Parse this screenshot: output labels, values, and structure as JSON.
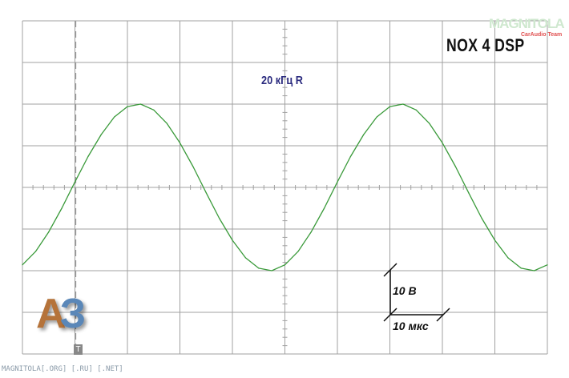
{
  "chart_data": {
    "type": "line",
    "title": "NOX 4 DSP",
    "annotation": "20 кГц R",
    "xlabel": "",
    "ylabel": "",
    "x_unit_per_div": "10 мкс",
    "y_unit_per_div": "10 В",
    "xlim": [
      0,
      100
    ],
    "ylim": [
      -40,
      40
    ],
    "grid": true,
    "trigger_label": "T",
    "trace_color": "#3a9a3a",
    "x": [
      0,
      2.5,
      5,
      7.5,
      10,
      12.5,
      15,
      17.5,
      20,
      22.5,
      25,
      27.5,
      30,
      32.5,
      35,
      37.5,
      40,
      42.5,
      45,
      47.5,
      50,
      52.5,
      55,
      57.5,
      60,
      62.5,
      65,
      67.5,
      70,
      72.5,
      75,
      77.5,
      80,
      82.5,
      85,
      87.5,
      90,
      92.5,
      95,
      97.5,
      100
    ],
    "series": [
      {
        "values": [
          -18.6,
          -15.4,
          -10.7,
          -5.0,
          1.3,
          7.4,
          12.7,
          16.9,
          19.4,
          20.0,
          18.6,
          15.4,
          10.7,
          5.0,
          -1.3,
          -7.4,
          -12.7,
          -16.9,
          -19.4,
          -20.0,
          -18.6,
          -15.4,
          -10.7,
          -5.0,
          1.3,
          7.4,
          12.7,
          16.9,
          19.4,
          20.0,
          18.6,
          15.4,
          10.7,
          5.0,
          -1.3,
          -7.4,
          -12.7,
          -16.9,
          -19.4,
          -20.0,
          -18.6
        ]
      }
    ]
  },
  "labels": {
    "signal": "20 кГц R",
    "model": "NOX 4 DSP",
    "vscale": "10 В",
    "tscale": "10 мкс",
    "trigger": "T"
  },
  "branding": {
    "logo_a": "А",
    "logo_b": "З",
    "watermark": "MAGNITOLA",
    "watermark_sub": "CarAudio Team",
    "footer": "MAGNITOLA[.ORG] [.RU] [.NET]"
  }
}
